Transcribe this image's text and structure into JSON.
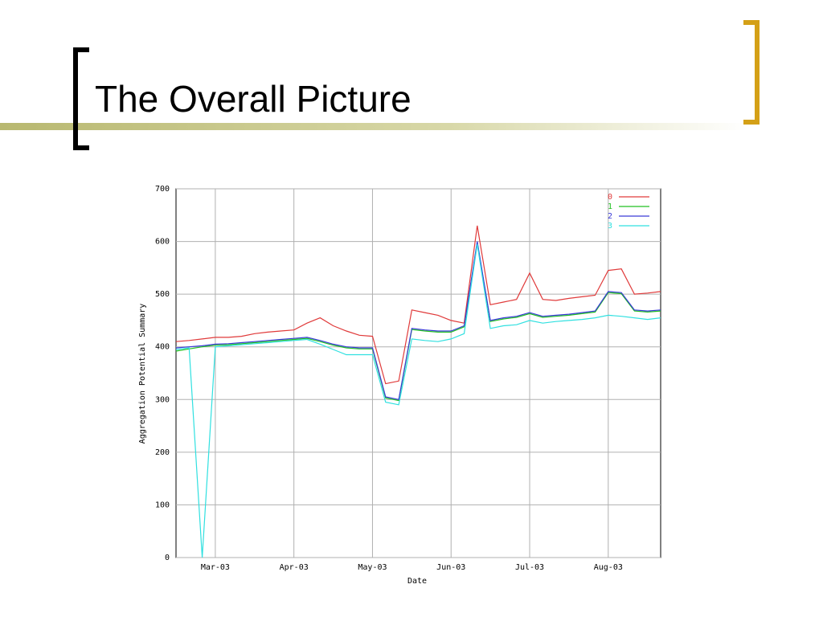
{
  "slide": {
    "title": "The Overall Picture"
  },
  "chart_data": {
    "type": "line",
    "y_label": "Aggregation Potential Summary",
    "x_label": "Date",
    "categories": [
      null,
      null,
      null,
      "Mar-03",
      null,
      null,
      null,
      null,
      null,
      "Apr-03",
      null,
      null,
      null,
      null,
      null,
      "May-03",
      null,
      null,
      null,
      null,
      null,
      "Jun-03",
      null,
      null,
      null,
      null,
      null,
      "Jul-03",
      null,
      null,
      null,
      null,
      null,
      "Aug-03",
      null,
      null,
      null,
      null
    ],
    "series": [
      {
        "name": "0",
        "color": "#e03a3a",
        "values": [
          410,
          412,
          415,
          418,
          418,
          420,
          425,
          428,
          430,
          432,
          445,
          455,
          440,
          430,
          422,
          420,
          330,
          335,
          470,
          465,
          460,
          450,
          445,
          630,
          480,
          485,
          490,
          540,
          490,
          488,
          492,
          495,
          498,
          545,
          548,
          500,
          502,
          505
        ]
      },
      {
        "name": "1",
        "color": "#20c020",
        "values": [
          392,
          396,
          400,
          403,
          404,
          406,
          408,
          410,
          412,
          414,
          416,
          410,
          403,
          398,
          396,
          396,
          303,
          298,
          433,
          430,
          428,
          428,
          438,
          598,
          448,
          453,
          456,
          463,
          456,
          458,
          460,
          463,
          466,
          503,
          501,
          468,
          466,
          468
        ]
      },
      {
        "name": "2",
        "color": "#3a3ad8",
        "values": [
          398,
          400,
          402,
          405,
          406,
          408,
          410,
          412,
          414,
          416,
          418,
          412,
          405,
          400,
          398,
          398,
          305,
          300,
          435,
          432,
          430,
          430,
          440,
          600,
          450,
          455,
          458,
          465,
          458,
          460,
          462,
          465,
          468,
          505,
          503,
          470,
          468,
          470
        ]
      },
      {
        "name": "3",
        "color": "#30e0e0",
        "values": [
          395,
          398,
          0,
          400,
          402,
          404,
          406,
          408,
          410,
          412,
          414,
          405,
          395,
          385,
          385,
          385,
          295,
          290,
          415,
          412,
          410,
          415,
          425,
          595,
          435,
          440,
          442,
          450,
          445,
          448,
          450,
          452,
          455,
          460,
          458,
          455,
          452,
          455
        ]
      }
    ],
    "ylim": [
      0,
      700
    ],
    "yticks": [
      0,
      100,
      200,
      300,
      400,
      500,
      600,
      700
    ],
    "grid": true,
    "legend": "top-right"
  }
}
